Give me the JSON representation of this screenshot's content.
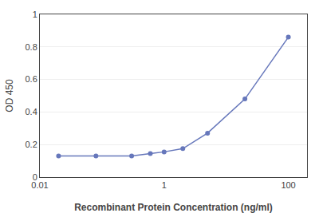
{
  "chart_data": {
    "type": "line",
    "x": [
      0.02,
      0.08,
      0.3,
      0.6,
      1.0,
      2.0,
      5.0,
      20.0,
      100.0
    ],
    "values": [
      0.13,
      0.13,
      0.13,
      0.145,
      0.155,
      0.175,
      0.27,
      0.48,
      0.86
    ],
    "xlabel": "Recombinant Protein Concentration (ng/ml)",
    "ylabel": "OD 450",
    "xlim": [
      0.01,
      200
    ],
    "ylim": [
      0,
      1.0
    ],
    "xticks": [
      0.01,
      1,
      100
    ],
    "yticks": [
      0,
      0.2,
      0.4,
      0.6,
      0.8,
      1
    ],
    "log": "x",
    "grid": true,
    "color": "#6677bb",
    "marker": "circle"
  }
}
